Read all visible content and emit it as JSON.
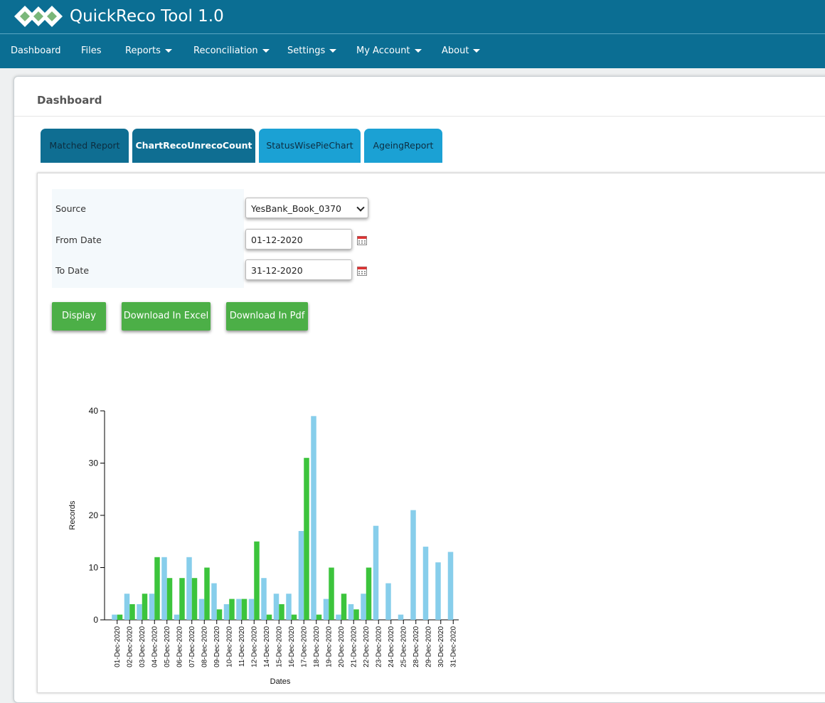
{
  "app": {
    "title": "QuickReco Tool 1.0"
  },
  "nav": {
    "items": [
      {
        "label": "Dashboard",
        "dropdown": false
      },
      {
        "label": "Files",
        "dropdown": false
      },
      {
        "label": "Reports",
        "dropdown": true
      },
      {
        "label": "Reconciliation",
        "dropdown": true
      },
      {
        "label": "Settings",
        "dropdown": true
      },
      {
        "label": "My Account",
        "dropdown": true
      },
      {
        "label": "About",
        "dropdown": true
      }
    ]
  },
  "page": {
    "title": "Dashboard"
  },
  "tabs": [
    {
      "label": "Matched Report"
    },
    {
      "label": "ChartRecoUnrecoCount"
    },
    {
      "label": "StatusWisePieChart"
    },
    {
      "label": "AgeingReport"
    }
  ],
  "form": {
    "source_label": "Source",
    "source_value": "YesBank_Book_0370",
    "from_label": "From Date",
    "from_value": "01-12-2020",
    "to_label": "To Date",
    "to_value": "31-12-2020"
  },
  "buttons": {
    "display": "Display",
    "excel": "Download In Excel",
    "pdf": "Download In Pdf"
  },
  "colors": {
    "brand": "#0b6e93",
    "tab_light": "#1ba1d4",
    "button": "#4caf47",
    "series_a": "#87ceeb",
    "series_b": "#3cc43c"
  },
  "chart_data": {
    "type": "bar",
    "xlabel": "Dates",
    "ylabel": "Records",
    "ylim": [
      0,
      40
    ],
    "yticks": [
      0,
      10,
      20,
      30,
      40
    ],
    "categories": [
      "01-Dec-2020",
      "02-Dec-2020",
      "03-Dec-2020",
      "04-Dec-2020",
      "05-Dec-2020",
      "06-Dec-2020",
      "07-Dec-2020",
      "08-Dec-2020",
      "09-Dec-2020",
      "10-Dec-2020",
      "11-Dec-2020",
      "12-Dec-2020",
      "14-Dec-2020",
      "15-Dec-2020",
      "16-Dec-2020",
      "17-Dec-2020",
      "18-Dec-2020",
      "19-Dec-2020",
      "20-Dec-2020",
      "21-Dec-2020",
      "22-Dec-2020",
      "23-Dec-2020",
      "24-Dec-2020",
      "25-Dec-2020",
      "28-Dec-2020",
      "29-Dec-2020",
      "30-Dec-2020",
      "31-Dec-2020"
    ],
    "series": [
      {
        "color": "#87ceeb",
        "values": [
          1,
          5,
          3,
          5,
          12,
          1,
          12,
          4,
          7,
          3,
          4,
          4,
          8,
          5,
          5,
          17,
          39,
          4,
          1,
          3,
          5,
          18,
          7,
          1,
          21,
          14,
          11,
          13
        ]
      },
      {
        "color": "#3cc43c",
        "values": [
          1,
          3,
          5,
          12,
          8,
          8,
          8,
          10,
          2,
          4,
          4,
          15,
          1,
          3,
          1,
          31,
          1,
          10,
          5,
          2,
          10,
          0,
          0,
          0,
          0,
          0,
          0,
          0
        ]
      }
    ],
    "grid": false,
    "legend": "none"
  }
}
